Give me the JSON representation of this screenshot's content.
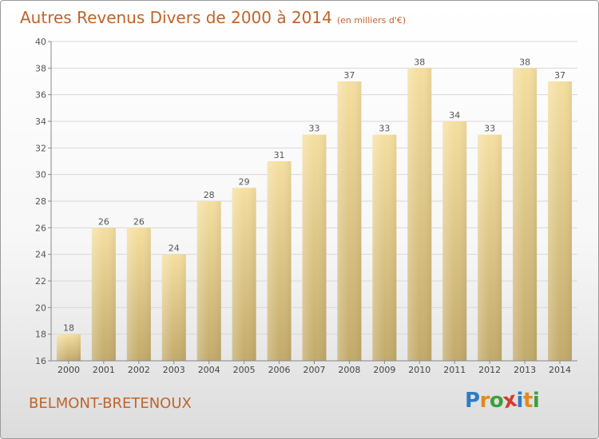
{
  "title": "Autres Revenus Divers de 2000 à 2014",
  "title_unit": "(en milliers d'€)",
  "location": "BELMONT-BRETENOUX",
  "logo": {
    "letters": [
      "P",
      "r",
      "o",
      "x",
      "i",
      "t",
      "i"
    ],
    "colors": [
      "#2e7cc4",
      "#e08a1e",
      "#3ca03c",
      "#d83a2a",
      "#2e7cc4",
      "#e08a1e",
      "#3ca03c"
    ]
  },
  "colors": {
    "title": "#c0642a",
    "bar_top": "#f5dfa0",
    "bar_bottom": "#c2aa6a",
    "axis": "#888888",
    "grid": "#d8d8d8"
  },
  "chart_data": {
    "type": "bar",
    "categories": [
      "2000",
      "2001",
      "2002",
      "2003",
      "2004",
      "2005",
      "2006",
      "2007",
      "2008",
      "2009",
      "2010",
      "2011",
      "2012",
      "2013",
      "2014"
    ],
    "values": [
      18,
      26,
      26,
      24,
      28,
      29,
      31,
      33,
      37,
      33,
      38,
      34,
      33,
      38,
      37
    ],
    "ylim": [
      16,
      40
    ],
    "yticks": [
      16,
      18,
      20,
      22,
      24,
      26,
      28,
      30,
      32,
      34,
      36,
      38,
      40
    ],
    "grid": true,
    "data_labels": true
  }
}
